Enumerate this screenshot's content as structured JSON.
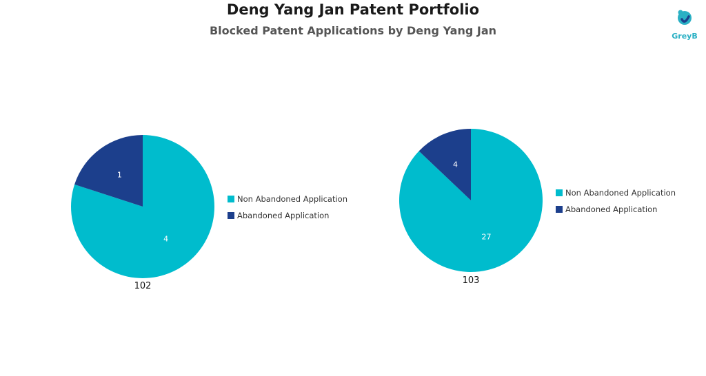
{
  "title": "Deng Yang Jan Patent Portfolio",
  "subtitle": "Blocked Patent Applications by Deng Yang Jan",
  "logo": {
    "text": "GreyB",
    "color": "#2ab0c4",
    "icon": "greyb-logo-icon"
  },
  "colors": {
    "non_abandoned": "#00bccd",
    "abandoned": "#1c3f8c"
  },
  "chart_data": [
    {
      "type": "pie",
      "label": "102",
      "slices": [
        {
          "name": "Non Abandoned Application",
          "value": 4
        },
        {
          "name": "Abandoned Application",
          "value": 1
        }
      ],
      "legend": [
        "Non Abandoned Application",
        "Abandoned Application"
      ]
    },
    {
      "type": "pie",
      "label": "103",
      "slices": [
        {
          "name": "Non Abandoned Application",
          "value": 27
        },
        {
          "name": "Abandoned Application",
          "value": 4
        }
      ],
      "legend": [
        "Non Abandoned Application",
        "Abandoned Application"
      ]
    }
  ]
}
